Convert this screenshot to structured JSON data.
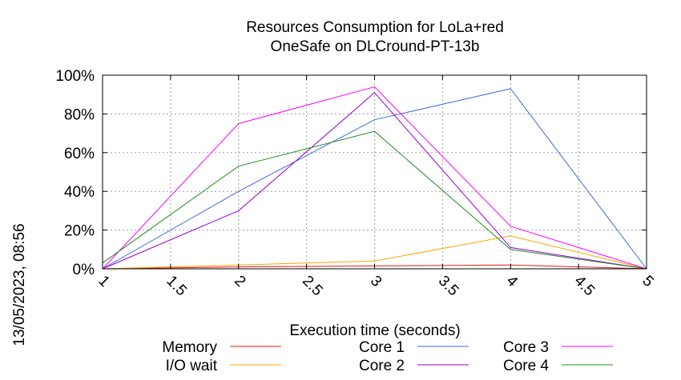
{
  "chart_data": {
    "type": "line",
    "title": [
      "Resources Consumption for LoLa+red",
      "OneSafe on DLCround-PT-13b"
    ],
    "xlabel": "Execution time (seconds)",
    "ylabel": "",
    "side_label": "13/05/2023, 08:56",
    "xlim": [
      1,
      5
    ],
    "ylim": [
      0,
      100
    ],
    "x_ticks": [
      "1",
      "1.5",
      "2",
      "2.5",
      "3",
      "3.5",
      "4",
      "4.5",
      "5"
    ],
    "y_ticks": [
      "0%",
      "20%",
      "40%",
      "60%",
      "80%",
      "100%"
    ],
    "grid": true,
    "legend_position": "bottom",
    "x": [
      1,
      2,
      3,
      4,
      5
    ],
    "series": [
      {
        "name": "Memory",
        "color": "#e41a1c",
        "values": [
          0,
          1,
          1.5,
          2,
          0
        ]
      },
      {
        "name": "I/O wait",
        "color": "#ffa500",
        "values": [
          0,
          2,
          4,
          17,
          0
        ]
      },
      {
        "name": "Core 1",
        "color": "#4169e1",
        "values": [
          0,
          40,
          77,
          93,
          0
        ]
      },
      {
        "name": "Core 2",
        "color": "#9400d3",
        "values": [
          0,
          30,
          91,
          11,
          0
        ]
      },
      {
        "name": "Core 3",
        "color": "#ff00ff",
        "values": [
          0,
          75,
          94,
          22,
          0
        ]
      },
      {
        "name": "Core 4",
        "color": "#228b22",
        "values": [
          3,
          53,
          71,
          10,
          0
        ]
      }
    ]
  }
}
